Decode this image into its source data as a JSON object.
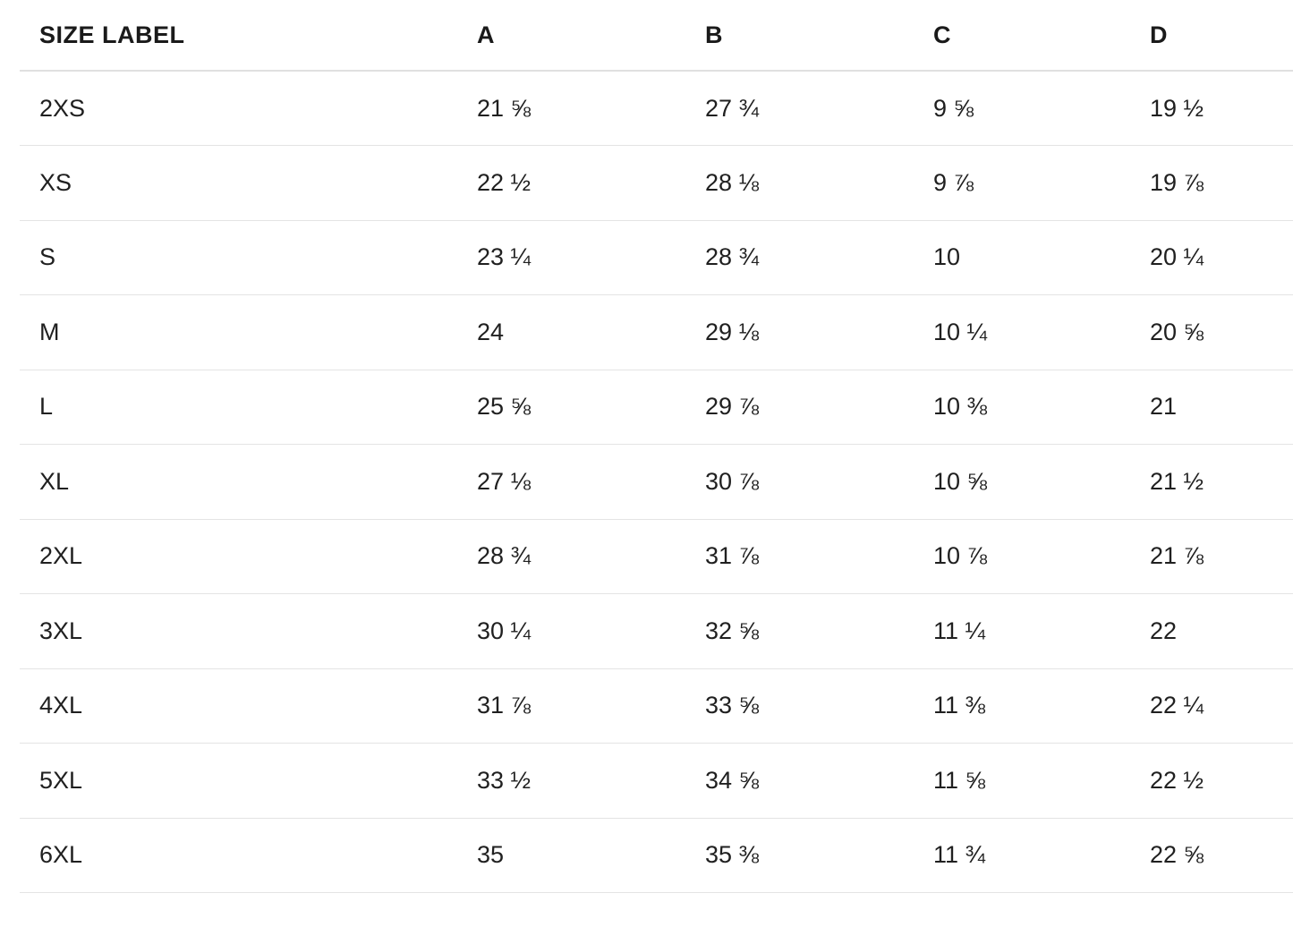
{
  "colors": {
    "background": "#ffffff",
    "text": "#1e1e1e",
    "divider": "#e4e4e4",
    "header_divider": "#e0e0e0"
  },
  "chart_data": {
    "type": "table",
    "title": "",
    "columns": [
      "SIZE LABEL",
      "A",
      "B",
      "C",
      "D"
    ],
    "rows": [
      [
        "2XS",
        "21 ⅝",
        "27 ¾",
        "9 ⅝",
        "19 ½"
      ],
      [
        "XS",
        "22 ½",
        "28 ⅛",
        "9 ⅞",
        "19 ⅞"
      ],
      [
        "S",
        "23 ¼",
        "28 ¾",
        "10",
        "20 ¼"
      ],
      [
        "M",
        "24",
        "29 ⅛",
        "10 ¼",
        "20 ⅝"
      ],
      [
        "L",
        "25 ⅝",
        "29 ⅞",
        "10 ⅜",
        "21"
      ],
      [
        "XL",
        "27 ⅛",
        "30 ⅞",
        "10 ⅝",
        "21 ½"
      ],
      [
        "2XL",
        "28 ¾",
        "31 ⅞",
        "10 ⅞",
        "21 ⅞"
      ],
      [
        "3XL",
        "30 ¼",
        "32 ⅝",
        "11 ¼",
        "22"
      ],
      [
        "4XL",
        "31 ⅞",
        "33 ⅝",
        "11 ⅜",
        "22 ¼"
      ],
      [
        "5XL",
        "33 ½",
        "34 ⅝",
        "11 ⅝",
        "22 ½"
      ],
      [
        "6XL",
        "35",
        "35 ⅜",
        "11 ¾",
        "22 ⅝"
      ]
    ]
  }
}
